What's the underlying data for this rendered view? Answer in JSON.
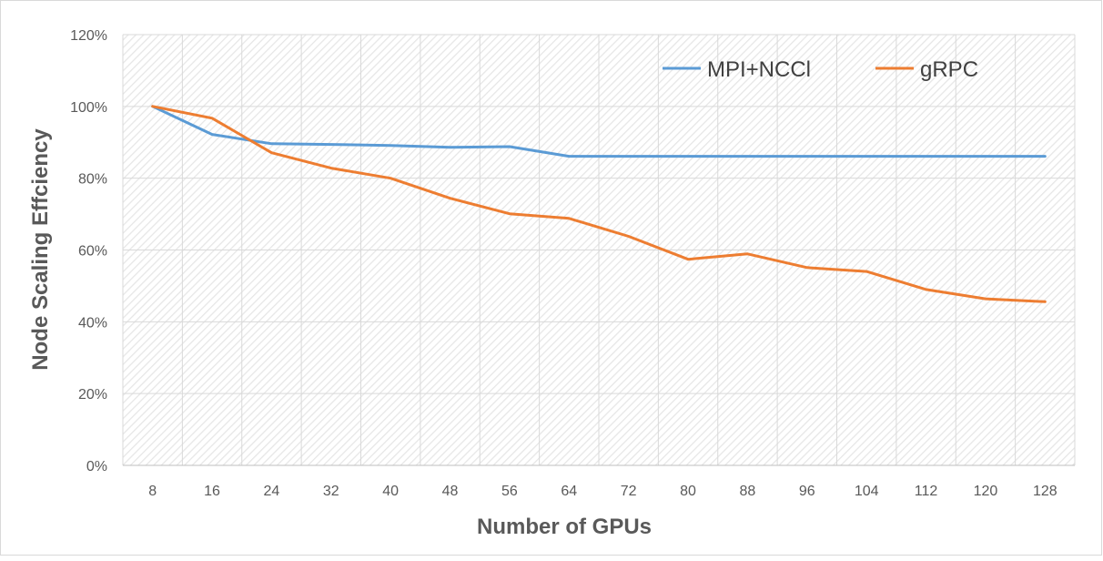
{
  "chart_data": {
    "type": "line",
    "title": "",
    "xlabel": "Number of GPUs",
    "ylabel": "Node Scaling Effciency",
    "categories": [
      "8",
      "16",
      "24",
      "32",
      "40",
      "48",
      "56",
      "64",
      "72",
      "80",
      "88",
      "96",
      "104",
      "112",
      "120",
      "128"
    ],
    "y_ticks": [
      "0%",
      "20%",
      "40%",
      "60%",
      "80%",
      "100%",
      "120%"
    ],
    "ylim": [
      0,
      120
    ],
    "y_unit": "%",
    "grid": true,
    "legend_position": "top-right",
    "series": [
      {
        "name": "MPI+NCCl",
        "color": "#5B9BD5",
        "values": [
          100,
          92.2,
          89.6,
          89.4,
          89.1,
          88.6,
          88.8,
          86.1,
          86.1,
          86.1,
          86.1,
          86.1,
          86.1,
          86.1,
          86.1,
          86.1
        ]
      },
      {
        "name": "gRPC",
        "color": "#ED7D31",
        "values": [
          100,
          96.7,
          87.1,
          82.8,
          80.0,
          74.4,
          70.1,
          68.8,
          63.8,
          57.4,
          58.9,
          55.1,
          54.0,
          49.0,
          46.4,
          45.6
        ]
      }
    ]
  }
}
